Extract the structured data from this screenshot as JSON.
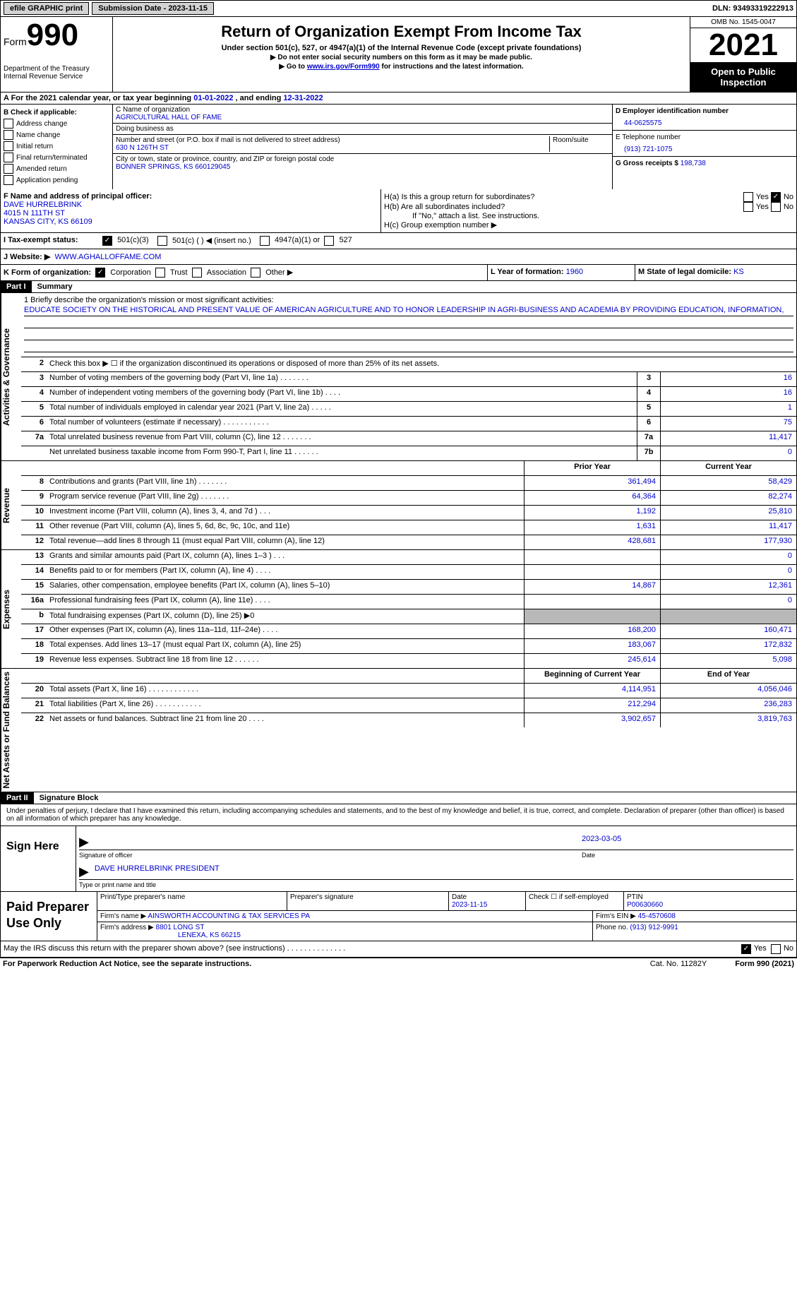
{
  "top_bar": {
    "efile": "efile GRAPHIC print",
    "submission_label": "Submission Date - 2023-11-15",
    "dln": "DLN: 93493319222913"
  },
  "header": {
    "form_label": "Form",
    "form_number": "990",
    "title": "Return of Organization Exempt From Income Tax",
    "subtitle": "Under section 501(c), 527, or 4947(a)(1) of the Internal Revenue Code (except private foundations)",
    "instr1": "▶ Do not enter social security numbers on this form as it may be made public.",
    "instr2_pre": "▶ Go to ",
    "instr2_link": "www.irs.gov/Form990",
    "instr2_post": " for instructions and the latest information.",
    "dept": "Department of the Treasury",
    "irs": "Internal Revenue Service",
    "omb": "OMB No. 1545-0047",
    "year": "2021",
    "open": "Open to Public Inspection"
  },
  "section_a": {
    "text_pre": "A For the 2021 calendar year, or tax year beginning ",
    "begin": "01-01-2022",
    "mid": "  , and ending ",
    "end": "12-31-2022"
  },
  "col_b": {
    "label": "B Check if applicable:",
    "opts": [
      "Address change",
      "Name change",
      "Initial return",
      "Final return/terminated",
      "Amended return",
      "Application pending"
    ]
  },
  "col_c": {
    "name_label": "C Name of organization",
    "name": "AGRICULTURAL HALL OF FAME",
    "dba_label": "Doing business as",
    "dba": "",
    "street_label": "Number and street (or P.O. box if mail is not delivered to street address)",
    "room_label": "Room/suite",
    "street": "630 N 126TH ST",
    "city_label": "City or town, state or province, country, and ZIP or foreign postal code",
    "city": "BONNER SPRINGS, KS  660129045"
  },
  "col_d": {
    "ein_label": "D Employer identification number",
    "ein": "44-0625575",
    "phone_label": "E Telephone number",
    "phone": "(913) 721-1075",
    "gross_label": "G Gross receipts $",
    "gross": "198,738"
  },
  "col_f": {
    "label": "F Name and address of principal officer:",
    "name": "DAVE HURRELBRINK",
    "street": "4015 N 111TH ST",
    "city": "KANSAS CITY, KS  66109"
  },
  "col_h": {
    "ha_label": "H(a)  Is this a group return for subordinates?",
    "hb_label": "H(b)  Are all subordinates included?",
    "hb_note": "If \"No,\" attach a list. See instructions.",
    "hc_label": "H(c)  Group exemption number ▶",
    "yes": "Yes",
    "no": "No"
  },
  "row_i": {
    "label": "I  Tax-exempt status:",
    "opt1": "501(c)(3)",
    "opt2": "501(c) (  ) ◀ (insert no.)",
    "opt3": "4947(a)(1) or",
    "opt4": "527"
  },
  "row_j": {
    "label": "J  Website: ▶",
    "url": "WWW.AGHALLOFFAME.COM"
  },
  "row_k": {
    "label": "K Form of organization:",
    "opts": [
      "Corporation",
      "Trust",
      "Association",
      "Other ▶"
    ],
    "l_label": "L Year of formation:",
    "l_val": "1960",
    "m_label": "M State of legal domicile:",
    "m_val": "KS"
  },
  "part1": {
    "header": "Part I",
    "title": "Summary",
    "mission_label": "1   Briefly describe the organization's mission or most significant activities:",
    "mission": "EDUCATE SOCIETY ON THE HISTORICAL AND PRESENT VALUE OF AMERICAN AGRICULTURE AND TO HONOR LEADERSHIP IN AGRI-BUSINESS AND ACADEMIA BY PROVIDING EDUCATION, INFORMATION,",
    "line2": "Check this box ▶ ☐  if the organization discontinued its operations or disposed of more than 25% of its net assets.",
    "sides": {
      "gov": "Activities & Governance",
      "rev": "Revenue",
      "exp": "Expenses",
      "net": "Net Assets or Fund Balances"
    },
    "gov_rows": [
      {
        "n": "3",
        "d": "Number of voting members of the governing body (Part VI, line 1a)   .    .    .    .    .    .    .",
        "b": "3",
        "v": "16"
      },
      {
        "n": "4",
        "d": "Number of independent voting members of the governing body (Part VI, line 1b)   .    .    .    .",
        "b": "4",
        "v": "16"
      },
      {
        "n": "5",
        "d": "Total number of individuals employed in calendar year 2021 (Part V, line 2a)   .    .    .    .    .",
        "b": "5",
        "v": "1"
      },
      {
        "n": "6",
        "d": "Total number of volunteers (estimate if necessary)    .    .    .    .    .    .    .    .    .    .    .",
        "b": "6",
        "v": "75"
      },
      {
        "n": "7a",
        "d": "Total unrelated business revenue from Part VIII, column (C), line 12    .    .    .    .    .    .    .",
        "b": "7a",
        "v": "11,417"
      },
      {
        "n": "",
        "d": "Net unrelated business taxable income from Form 990-T, Part I, line 11   .    .    .    .    .    .",
        "b": "7b",
        "v": "0"
      }
    ],
    "rev_header": {
      "py": "Prior Year",
      "cy": "Current Year"
    },
    "rev_rows": [
      {
        "n": "8",
        "d": "Contributions and grants (Part VIII, line 1h)    .    .    .    .    .    .    .",
        "py": "361,494",
        "cy": "58,429"
      },
      {
        "n": "9",
        "d": "Program service revenue (Part VIII, line 2g)   .    .    .    .    .    .    .",
        "py": "64,364",
        "cy": "82,274"
      },
      {
        "n": "10",
        "d": "Investment income (Part VIII, column (A), lines 3, 4, and 7d )    .    .    .",
        "py": "1,192",
        "cy": "25,810"
      },
      {
        "n": "11",
        "d": "Other revenue (Part VIII, column (A), lines 5, 6d, 8c, 9c, 10c, and 11e)",
        "py": "1,631",
        "cy": "11,417"
      },
      {
        "n": "12",
        "d": "Total revenue—add lines 8 through 11 (must equal Part VIII, column (A), line 12)",
        "py": "428,681",
        "cy": "177,930"
      }
    ],
    "exp_rows": [
      {
        "n": "13",
        "d": "Grants and similar amounts paid (Part IX, column (A), lines 1–3 )   .    .    .",
        "py": "",
        "cy": "0"
      },
      {
        "n": "14",
        "d": "Benefits paid to or for members (Part IX, column (A), line 4)   .    .    .    .",
        "py": "",
        "cy": "0"
      },
      {
        "n": "15",
        "d": "Salaries, other compensation, employee benefits (Part IX, column (A), lines 5–10)",
        "py": "14,867",
        "cy": "12,361"
      },
      {
        "n": "16a",
        "d": "Professional fundraising fees (Part IX, column (A), line 11e)    .    .    .    .",
        "py": "",
        "cy": "0"
      },
      {
        "n": "b",
        "d": "Total fundraising expenses (Part IX, column (D), line 25) ▶0",
        "py": "grey",
        "cy": "grey"
      },
      {
        "n": "17",
        "d": "Other expenses (Part IX, column (A), lines 11a–11d, 11f–24e)    .    .    .    .",
        "py": "168,200",
        "cy": "160,471"
      },
      {
        "n": "18",
        "d": "Total expenses. Add lines 13–17 (must equal Part IX, column (A), line 25)",
        "py": "183,067",
        "cy": "172,832"
      },
      {
        "n": "19",
        "d": "Revenue less expenses. Subtract line 18 from line 12   .    .    .    .    .    .",
        "py": "245,614",
        "cy": "5,098"
      }
    ],
    "net_header": {
      "py": "Beginning of Current Year",
      "cy": "End of Year"
    },
    "net_rows": [
      {
        "n": "20",
        "d": "Total assets (Part X, line 16)   .    .    .    .    .    .    .    .    .    .    .    .",
        "py": "4,114,951",
        "cy": "4,056,046"
      },
      {
        "n": "21",
        "d": "Total liabilities (Part X, line 26)    .    .    .    .    .    .    .    .    .    .    .",
        "py": "212,294",
        "cy": "236,283"
      },
      {
        "n": "22",
        "d": "Net assets or fund balances. Subtract line 21 from line 20    .    .    .    .",
        "py": "3,902,657",
        "cy": "3,819,763"
      }
    ]
  },
  "part2": {
    "header": "Part II",
    "title": "Signature Block",
    "penalties": "Under penalties of perjury, I declare that I have examined this return, including accompanying schedules and statements, and to the best of my knowledge and belief, it is true, correct, and complete. Declaration of preparer (other than officer) is based on all information of which preparer has any knowledge.",
    "sign_label": "Sign Here",
    "sig_of_officer": "Signature of officer",
    "sig_date": "2023-03-05",
    "date_label": "Date",
    "officer_name": "DAVE HURRELBRINK  PRESIDENT",
    "type_name_label": "Type or print name and title",
    "prep_label": "Paid Preparer Use Only",
    "prep_name_label": "Print/Type preparer's name",
    "prep_sig_label": "Preparer's signature",
    "prep_date_label": "Date",
    "prep_date": "2023-11-15",
    "check_if": "Check ☐ if self-employed",
    "ptin_label": "PTIN",
    "ptin": "P00630660",
    "firm_name_label": "Firm's name      ▶",
    "firm_name": "AINSWORTH ACCOUNTING & TAX SERVICES PA",
    "firm_ein_label": "Firm's EIN ▶",
    "firm_ein": "45-4570608",
    "firm_addr_label": "Firm's address ▶",
    "firm_addr1": "8801 LONG ST",
    "firm_addr2": "LENEXA, KS  66215",
    "firm_phone_label": "Phone no.",
    "firm_phone": "(913) 912-9991",
    "discuss": "May the IRS discuss this return with the preparer shown above? (see instructions)    .    .    .    .    .    .    .    .    .    .    .    .    .    .",
    "yes": "Yes",
    "no": "No"
  },
  "footer": {
    "paperwork": "For Paperwork Reduction Act Notice, see the separate instructions.",
    "cat": "Cat. No. 11282Y",
    "form": "Form 990 (2021)"
  }
}
